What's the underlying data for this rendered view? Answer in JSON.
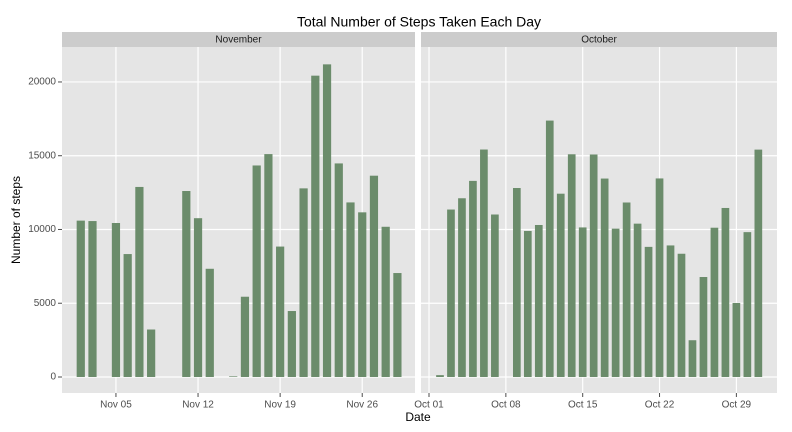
{
  "title": "Total Number of Steps Taken Each Day",
  "x_label": "Date",
  "y_label": "Number of steps",
  "chart_data": [
    {
      "type": "bar",
      "facet": "November",
      "color": "#6b8c6b",
      "grid": true,
      "x": [
        1,
        2,
        3,
        4,
        5,
        6,
        7,
        8,
        9,
        10,
        11,
        12,
        13,
        14,
        15,
        16,
        17,
        18,
        19,
        20,
        21,
        22,
        23,
        24,
        25,
        26,
        27,
        28,
        29,
        30
      ],
      "values": [
        null,
        10600,
        10571,
        null,
        10439,
        8334,
        12883,
        3219,
        null,
        null,
        12608,
        10765,
        7336,
        null,
        41,
        5441,
        14339,
        15110,
        8841,
        4472,
        12787,
        20427,
        21194,
        14478,
        11834,
        11162,
        13646,
        10183,
        7047,
        null
      ],
      "xlim": [
        0.4,
        30.5
      ],
      "xticks": [
        {
          "value": 5,
          "label": "Nov 05"
        },
        {
          "value": 12,
          "label": "Nov 12"
        },
        {
          "value": 19,
          "label": "Nov 19"
        },
        {
          "value": 26,
          "label": "Nov 26"
        }
      ],
      "ylim": [
        -1085,
        22370
      ],
      "yticks": [
        0,
        5000,
        10000,
        15000,
        20000
      ]
    },
    {
      "type": "bar",
      "facet": "October",
      "color": "#6b8c6b",
      "grid": true,
      "x": [
        1,
        2,
        3,
        4,
        5,
        6,
        7,
        8,
        9,
        10,
        11,
        12,
        13,
        14,
        15,
        16,
        17,
        18,
        19,
        20,
        21,
        22,
        23,
        24,
        25,
        26,
        27,
        28,
        29,
        30,
        31
      ],
      "values": [
        null,
        126,
        11352,
        12116,
        13294,
        15420,
        11015,
        null,
        12811,
        9900,
        10304,
        17382,
        12426,
        15098,
        10139,
        15084,
        13452,
        10056,
        11829,
        10395,
        8821,
        13460,
        8918,
        8355,
        2492,
        6778,
        10119,
        11458,
        5018,
        9819,
        15414
      ],
      "xlim": [
        0.27,
        32.7
      ],
      "xticks": [
        {
          "value": 1,
          "label": "Oct 01"
        },
        {
          "value": 8,
          "label": "Oct 08"
        },
        {
          "value": 15,
          "label": "Oct 15"
        },
        {
          "value": 22,
          "label": "Oct 22"
        },
        {
          "value": 29,
          "label": "Oct 29"
        }
      ],
      "ylim": [
        -1085,
        22370
      ],
      "yticks": [
        0,
        5000,
        10000,
        15000,
        20000
      ]
    }
  ]
}
